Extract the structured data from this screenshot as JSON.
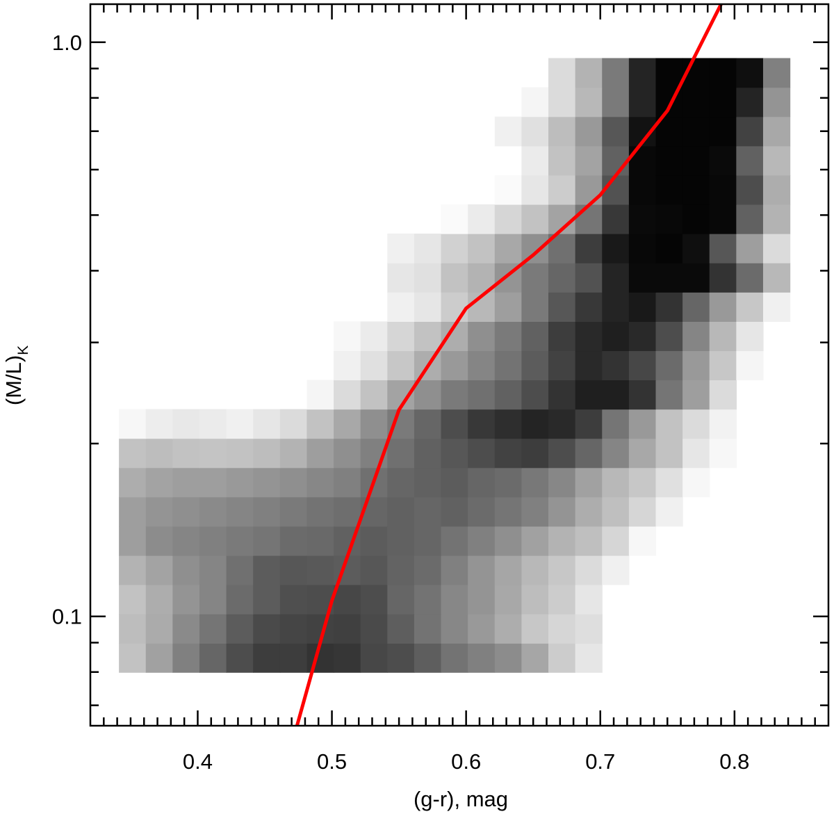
{
  "chart_data": {
    "type": "heatmap",
    "title": "",
    "xlabel": "(g-r), mag",
    "ylabel": "(M/L)",
    "ylabel_subscript": "K",
    "x_scale": "linear",
    "y_scale": "log",
    "xlim": [
      0.32,
      0.87
    ],
    "ylim": [
      0.0645,
      1.165
    ],
    "x_ticks": [
      {
        "value": 0.4,
        "label": "0.4"
      },
      {
        "value": 0.5,
        "label": "0.5"
      },
      {
        "value": 0.6,
        "label": "0.6"
      },
      {
        "value": 0.7,
        "label": "0.7"
      },
      {
        "value": 0.8,
        "label": "0.8"
      }
    ],
    "x_minor_ticks": [
      0.33,
      0.34,
      0.35,
      0.36,
      0.37,
      0.38,
      0.39,
      0.41,
      0.42,
      0.43,
      0.44,
      0.45,
      0.46,
      0.47,
      0.48,
      0.49,
      0.51,
      0.52,
      0.53,
      0.54,
      0.55,
      0.56,
      0.57,
      0.58,
      0.59,
      0.61,
      0.62,
      0.63,
      0.64,
      0.65,
      0.66,
      0.67,
      0.68,
      0.69,
      0.71,
      0.72,
      0.73,
      0.74,
      0.75,
      0.76,
      0.77,
      0.78,
      0.79,
      0.81,
      0.82,
      0.83,
      0.84,
      0.85,
      0.86
    ],
    "y_ticks": [
      {
        "value": 0.1,
        "label": "0.1"
      },
      {
        "value": 1.0,
        "label": "1.0"
      }
    ],
    "y_minor_ticks": [
      0.07,
      0.08,
      0.09,
      0.2,
      0.3,
      0.4,
      0.5,
      0.6,
      0.7,
      0.8,
      0.9
    ],
    "grid": false,
    "legend": null,
    "colors": {
      "curve": "#ff0000",
      "density_low": "#ffffff",
      "density_high": "#000000"
    },
    "density": {
      "x_edges": [
        0.3413,
        0.3613,
        0.3813,
        0.4013,
        0.4213,
        0.4413,
        0.4613,
        0.4813,
        0.5013,
        0.5213,
        0.5413,
        0.5613,
        0.5813,
        0.6013,
        0.6213,
        0.6413,
        0.6613,
        0.6813,
        0.7013,
        0.7213,
        0.7413,
        0.7613,
        0.7813,
        0.8013,
        0.8213,
        0.8413
      ],
      "y_edges": [
        0.0799,
        0.0898,
        0.101,
        0.1136,
        0.1277,
        0.1436,
        0.1615,
        0.1816,
        0.2042,
        0.2296,
        0.2582,
        0.2903,
        0.3264,
        0.3671,
        0.4128,
        0.4642,
        0.522,
        0.5869,
        0.66,
        0.7422,
        0.8346,
        0.9385
      ],
      "note_rows": "rows ordered bottom to top; 0 = white, 1 = black",
      "values": [
        [
          0.24,
          0.37,
          0.5,
          0.6,
          0.7,
          0.76,
          0.76,
          0.8,
          0.79,
          0.72,
          0.7,
          0.63,
          0.55,
          0.5,
          0.45,
          0.35,
          0.2,
          0.1,
          0,
          0,
          0,
          0,
          0,
          0,
          0
        ],
        [
          0.26,
          0.33,
          0.46,
          0.54,
          0.64,
          0.71,
          0.73,
          0.74,
          0.75,
          0.71,
          0.63,
          0.55,
          0.47,
          0.4,
          0.32,
          0.22,
          0.16,
          0.13,
          0,
          0,
          0,
          0,
          0,
          0,
          0
        ],
        [
          0.24,
          0.32,
          0.42,
          0.48,
          0.58,
          0.64,
          0.69,
          0.7,
          0.72,
          0.7,
          0.6,
          0.55,
          0.47,
          0.42,
          0.34,
          0.26,
          0.2,
          0.1,
          0,
          0,
          0,
          0,
          0,
          0,
          0
        ],
        [
          0.3,
          0.36,
          0.44,
          0.48,
          0.56,
          0.64,
          0.66,
          0.65,
          0.64,
          0.66,
          0.61,
          0.58,
          0.5,
          0.42,
          0.35,
          0.28,
          0.22,
          0.14,
          0.06,
          0,
          0,
          0,
          0,
          0,
          0
        ],
        [
          0.38,
          0.45,
          0.48,
          0.5,
          0.52,
          0.54,
          0.58,
          0.59,
          0.62,
          0.64,
          0.62,
          0.6,
          0.55,
          0.5,
          0.44,
          0.37,
          0.3,
          0.25,
          0.16,
          0.03,
          0,
          0,
          0,
          0,
          0
        ],
        [
          0.38,
          0.42,
          0.44,
          0.46,
          0.48,
          0.5,
          0.52,
          0.55,
          0.57,
          0.6,
          0.62,
          0.6,
          0.62,
          0.58,
          0.54,
          0.5,
          0.42,
          0.32,
          0.25,
          0.16,
          0.06,
          0,
          0,
          0,
          0
        ],
        [
          0.32,
          0.36,
          0.38,
          0.38,
          0.4,
          0.42,
          0.44,
          0.47,
          0.5,
          0.56,
          0.6,
          0.62,
          0.64,
          0.6,
          0.58,
          0.53,
          0.47,
          0.37,
          0.28,
          0.22,
          0.12,
          0.03,
          0,
          0,
          0
        ],
        [
          0.24,
          0.26,
          0.24,
          0.23,
          0.24,
          0.26,
          0.3,
          0.38,
          0.44,
          0.5,
          0.56,
          0.62,
          0.66,
          0.7,
          0.74,
          0.76,
          0.7,
          0.6,
          0.48,
          0.34,
          0.24,
          0.1,
          0.03,
          0,
          0
        ],
        [
          0.03,
          0.07,
          0.09,
          0.08,
          0.06,
          0.1,
          0.14,
          0.24,
          0.34,
          0.44,
          0.52,
          0.6,
          0.7,
          0.78,
          0.82,
          0.86,
          0.84,
          0.76,
          0.54,
          0.4,
          0.24,
          0.14,
          0.05,
          0,
          0
        ],
        [
          0,
          0,
          0,
          0,
          0,
          0,
          0,
          0.04,
          0.14,
          0.24,
          0.36,
          0.44,
          0.52,
          0.56,
          0.62,
          0.7,
          0.8,
          0.88,
          0.88,
          0.8,
          0.54,
          0.38,
          0.14,
          0,
          0
        ],
        [
          0,
          0,
          0,
          0,
          0,
          0,
          0,
          0,
          0.06,
          0.12,
          0.22,
          0.32,
          0.4,
          0.48,
          0.55,
          0.64,
          0.74,
          0.84,
          0.8,
          0.72,
          0.58,
          0.4,
          0.22,
          0.04,
          0
        ],
        [
          0,
          0,
          0,
          0,
          0,
          0,
          0,
          0,
          0.03,
          0.08,
          0.16,
          0.24,
          0.32,
          0.44,
          0.52,
          0.62,
          0.76,
          0.84,
          0.88,
          0.84,
          0.7,
          0.48,
          0.28,
          0.1,
          0
        ],
        [
          0,
          0,
          0,
          0,
          0,
          0,
          0,
          0,
          0,
          0,
          0.06,
          0.1,
          0.2,
          0.28,
          0.38,
          0.52,
          0.66,
          0.78,
          0.86,
          0.9,
          0.8,
          0.6,
          0.4,
          0.22,
          0.06
        ],
        [
          0,
          0,
          0,
          0,
          0,
          0,
          0,
          0,
          0,
          0,
          0.1,
          0.12,
          0.24,
          0.3,
          0.42,
          0.52,
          0.6,
          0.68,
          0.86,
          0.96,
          0.96,
          0.96,
          0.8,
          0.58,
          0.28
        ],
        [
          0,
          0,
          0,
          0,
          0,
          0,
          0,
          0,
          0,
          0,
          0.06,
          0.1,
          0.18,
          0.24,
          0.34,
          0.44,
          0.56,
          0.76,
          0.9,
          0.97,
          0.98,
          0.94,
          0.66,
          0.38,
          0.14
        ],
        [
          0,
          0,
          0,
          0,
          0,
          0,
          0,
          0,
          0,
          0,
          0,
          0,
          0.02,
          0.08,
          0.16,
          0.24,
          0.36,
          0.54,
          0.78,
          0.96,
          0.97,
          0.98,
          0.97,
          0.62,
          0.3
        ],
        [
          0,
          0,
          0,
          0,
          0,
          0,
          0,
          0,
          0,
          0,
          0,
          0,
          0,
          0,
          0.02,
          0.1,
          0.2,
          0.4,
          0.68,
          0.97,
          0.98,
          0.98,
          0.97,
          0.7,
          0.32
        ],
        [
          0,
          0,
          0,
          0,
          0,
          0,
          0,
          0,
          0,
          0,
          0,
          0,
          0,
          0,
          0,
          0.08,
          0.24,
          0.36,
          0.62,
          0.97,
          0.98,
          0.98,
          0.96,
          0.62,
          0.28
        ],
        [
          0,
          0,
          0,
          0,
          0,
          0,
          0,
          0,
          0,
          0,
          0,
          0,
          0,
          0,
          0.06,
          0.12,
          0.26,
          0.4,
          0.66,
          0.93,
          0.98,
          0.98,
          0.98,
          0.74,
          0.34
        ],
        [
          0,
          0,
          0,
          0,
          0,
          0,
          0,
          0,
          0,
          0,
          0,
          0,
          0,
          0,
          0,
          0.04,
          0.14,
          0.28,
          0.52,
          0.86,
          0.98,
          0.98,
          0.98,
          0.86,
          0.42
        ],
        [
          0,
          0,
          0,
          0,
          0,
          0,
          0,
          0,
          0,
          0,
          0,
          0,
          0,
          0,
          0,
          0,
          0.14,
          0.3,
          0.52,
          0.86,
          0.98,
          0.98,
          0.98,
          0.94,
          0.5
        ]
      ]
    },
    "series": [
      {
        "type": "line",
        "x": [
          0.474,
          0.5,
          0.55,
          0.6,
          0.65,
          0.7,
          0.75,
          0.79
        ],
        "y": [
          0.0645,
          0.1065,
          0.229,
          0.344,
          0.426,
          0.542,
          0.76,
          1.165
        ]
      }
    ]
  }
}
